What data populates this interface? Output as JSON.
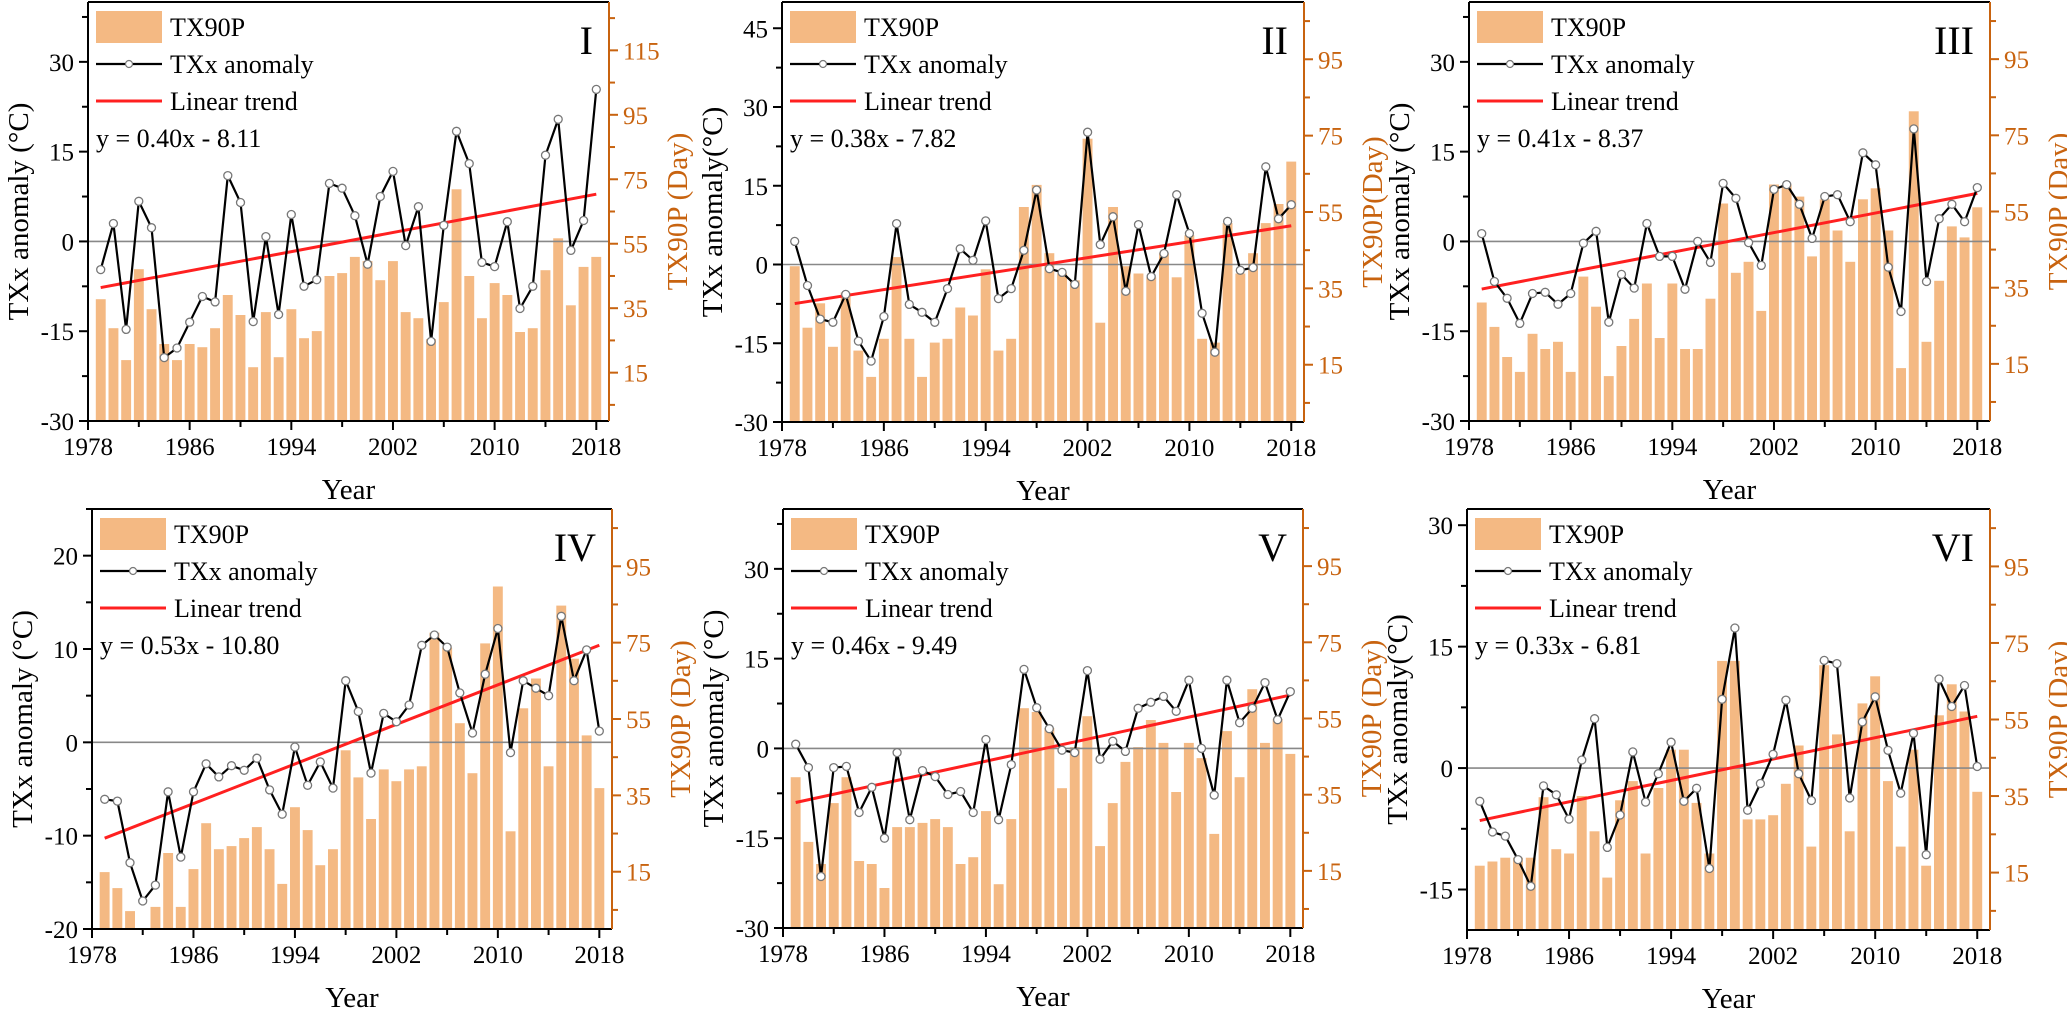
{
  "figure": {
    "x_label": "Year",
    "legend": {
      "bars": "TX90P",
      "line": "TXx anomaly",
      "trend": "Linear trend"
    },
    "colors": {
      "bars": "#F4B983",
      "right_axis": "#C8630F",
      "line": "#000000",
      "marker_fill": "#FFFFFF",
      "marker_stroke": "#777777",
      "trend": "#FF2020",
      "zero_line": "#888888"
    }
  },
  "chart_data": [
    {
      "type": "bar+line",
      "panel": "I",
      "equation": "y = 0.40x - 8.11",
      "trend": {
        "slope": 0.4,
        "intercept": -8.11
      },
      "ylabel_left": "TXx anomaly (°C)",
      "ylabel_right": "TX90P (Day)",
      "xlim": [
        1978,
        2019
      ],
      "x_ticks": [
        1978,
        1986,
        1994,
        2002,
        2010,
        2018
      ],
      "ylim_left": [
        -30,
        40
      ],
      "yticks_left": [
        -30,
        -15,
        0,
        15,
        30
      ],
      "ylim_right": [
        0,
        130
      ],
      "yticks_right": [
        15,
        35,
        55,
        75,
        95,
        115
      ],
      "years_start": 1979,
      "series": [
        {
          "name": "TXx anomaly",
          "axis": "left",
          "values": [
            -4.7,
            3.0,
            -14.7,
            6.7,
            2.3,
            -19.4,
            -17.8,
            -13.5,
            -9.2,
            -10.1,
            11.0,
            6.5,
            -13.4,
            0.8,
            -12.2,
            4.5,
            -7.5,
            -6.4,
            9.7,
            8.9,
            4.3,
            -3.8,
            7.5,
            11.7,
            -0.7,
            5.8,
            -16.7,
            2.7,
            18.4,
            13.0,
            -3.5,
            -4.2,
            3.3,
            -11.2,
            -7.5,
            14.4,
            20.4,
            -1.5,
            3.5,
            25.4
          ]
        },
        {
          "name": "TX90P",
          "axis": "right",
          "values": [
            37.8,
            28.8,
            18.9,
            47.1,
            34.7,
            23.9,
            18.9,
            23.9,
            22.9,
            28.8,
            39.1,
            32.9,
            16.7,
            33.8,
            19.8,
            34.7,
            25.7,
            27.9,
            45.0,
            45.9,
            50.9,
            49.6,
            43.7,
            49.6,
            33.8,
            31.9,
            25.4,
            36.9,
            71.9,
            45.0,
            31.9,
            42.8,
            39.1,
            27.6,
            28.8,
            46.8,
            56.7,
            35.9,
            47.8,
            50.9
          ]
        }
      ]
    },
    {
      "type": "bar+line",
      "panel": "II",
      "equation": "y = 0.38x - 7.82",
      "trend": {
        "slope": 0.38,
        "intercept": -7.82
      },
      "ylabel_left": "TXx anomaly(°C)",
      "ylabel_right": "TX90P(Day)",
      "xlim": [
        1978,
        2019
      ],
      "x_ticks": [
        1978,
        1986,
        1994,
        2002,
        2010,
        2018
      ],
      "ylim_left": [
        -30,
        50
      ],
      "yticks_left": [
        -30,
        -15,
        0,
        15,
        30,
        45
      ],
      "ylim_right": [
        0,
        110
      ],
      "yticks_right": [
        15,
        35,
        55,
        75,
        95
      ],
      "years_start": 1979,
      "series": [
        {
          "name": "TXx anomaly",
          "axis": "left",
          "values": [
            4.4,
            -4.0,
            -10.4,
            -11.0,
            -5.7,
            -14.6,
            -18.4,
            -9.9,
            7.8,
            -7.6,
            -9.1,
            -11.0,
            -4.6,
            3.0,
            0.8,
            8.3,
            -6.5,
            -4.6,
            2.7,
            14.2,
            -0.8,
            -1.5,
            -3.8,
            25.2,
            3.8,
            9.1,
            -5.1,
            7.6,
            -2.3,
            2.1,
            13.3,
            5.9,
            -9.3,
            -16.7,
            8.2,
            -1.1,
            -0.6,
            18.6,
            8.7,
            11.4
          ]
        },
        {
          "name": "TX90P",
          "axis": "right",
          "values": [
            40.8,
            24.7,
            31.1,
            19.7,
            33.9,
            18.7,
            11.8,
            21.8,
            43.2,
            21.8,
            11.8,
            20.8,
            21.8,
            30.0,
            27.9,
            40.0,
            18.7,
            21.8,
            56.3,
            62.1,
            44.2,
            38.9,
            37.1,
            74.2,
            26.0,
            56.3,
            40.8,
            38.9,
            37.9,
            44.2,
            37.9,
            48.9,
            21.8,
            20.8,
            52.1,
            38.9,
            44.2,
            52.1,
            57.1,
            68.2
          ]
        }
      ]
    },
    {
      "type": "bar+line",
      "panel": "III",
      "equation": "y = 0.41x - 8.37",
      "trend": {
        "slope": 0.41,
        "intercept": -8.37
      },
      "ylabel_left": "TXx anomaly (°C)",
      "ylabel_right": "TX90P (Day)",
      "xlim": [
        1978,
        2019
      ],
      "x_ticks": [
        1978,
        1986,
        1994,
        2002,
        2010,
        2018
      ],
      "ylim_left": [
        -30,
        40
      ],
      "yticks_left": [
        -30,
        -15,
        0,
        15,
        30
      ],
      "ylim_right": [
        0,
        110
      ],
      "yticks_right": [
        15,
        35,
        55,
        75,
        95
      ],
      "years_start": 1979,
      "series": [
        {
          "name": "TXx anomaly",
          "axis": "left",
          "values": [
            1.3,
            -6.7,
            -9.5,
            -13.7,
            -8.7,
            -8.5,
            -10.5,
            -8.7,
            -0.3,
            1.7,
            -13.5,
            -5.5,
            -7.8,
            3.0,
            -2.5,
            -2.5,
            -8.0,
            0.0,
            -3.5,
            9.7,
            7.2,
            -0.2,
            -4.0,
            8.7,
            9.5,
            6.2,
            0.5,
            7.5,
            7.8,
            3.3,
            14.8,
            12.8,
            -4.3,
            -11.7,
            18.8,
            -6.7,
            3.8,
            6.2,
            3.3,
            9.0
          ]
        },
        {
          "name": "TX90P",
          "axis": "right",
          "values": [
            31.1,
            24.7,
            16.8,
            12.9,
            22.9,
            18.9,
            20.8,
            12.9,
            37.9,
            30.0,
            11.8,
            19.7,
            26.8,
            36.1,
            21.8,
            36.1,
            18.9,
            18.9,
            32.1,
            57.1,
            38.9,
            41.8,
            28.9,
            62.1,
            62.1,
            58.9,
            43.2,
            58.2,
            50.0,
            41.8,
            58.2,
            61.1,
            50.0,
            13.9,
            81.3,
            20.8,
            36.8,
            51.1,
            48.2,
            56.1
          ]
        }
      ]
    },
    {
      "type": "bar+line",
      "panel": "IV",
      "equation": "y = 0.53x - 10.80",
      "trend": {
        "slope": 0.53,
        "intercept": -10.8
      },
      "ylabel_left": "TXx anomaly (°C)",
      "ylabel_right": "TX90P (Day)",
      "xlim": [
        1978,
        2019
      ],
      "x_ticks": [
        1978,
        1986,
        1994,
        2002,
        2010,
        2018
      ],
      "ylim_left": [
        -20,
        25
      ],
      "yticks_left": [
        -20,
        -10,
        0,
        10,
        20
      ],
      "ylim_right": [
        0,
        110
      ],
      "yticks_right": [
        15,
        35,
        55,
        75,
        95
      ],
      "years_start": 1979,
      "series": [
        {
          "name": "TXx anomaly",
          "axis": "left",
          "values": [
            -6.1,
            -6.3,
            -12.9,
            -17.0,
            -15.3,
            -5.3,
            -12.3,
            -5.3,
            -2.3,
            -3.7,
            -2.5,
            -3.0,
            -1.7,
            -5.1,
            -7.7,
            -0.5,
            -4.6,
            -2.1,
            -4.9,
            6.6,
            3.3,
            -3.3,
            3.1,
            2.2,
            4.0,
            10.4,
            11.5,
            10.2,
            5.3,
            1.0,
            7.3,
            12.2,
            -1.1,
            6.6,
            5.8,
            5.0,
            13.5,
            6.6,
            9.9,
            1.2
          ]
        },
        {
          "name": "TX90P",
          "axis": "right",
          "values": [
            14.9,
            10.7,
            4.7,
            0.0,
            5.8,
            19.9,
            5.8,
            15.7,
            27.7,
            20.9,
            21.7,
            23.8,
            26.7,
            20.9,
            11.8,
            31.9,
            25.9,
            16.7,
            20.9,
            46.8,
            39.7,
            28.8,
            41.8,
            38.7,
            41.8,
            42.6,
            77.6,
            73.7,
            53.9,
            40.8,
            74.8,
            89.7,
            25.6,
            57.8,
            65.6,
            42.6,
            84.7,
            70.8,
            50.7,
            36.9
          ]
        }
      ]
    },
    {
      "type": "bar+line",
      "panel": "V",
      "equation": "y = 0.46x - 9.49",
      "trend": {
        "slope": 0.46,
        "intercept": -9.49
      },
      "ylabel_left": "TXx anomaly (°C)",
      "ylabel_right": "TX90P (Day)",
      "xlim": [
        1978,
        2019
      ],
      "x_ticks": [
        1978,
        1986,
        1994,
        2002,
        2010,
        2018
      ],
      "ylim_left": [
        -30,
        40
      ],
      "yticks_left": [
        -30,
        -15,
        0,
        15,
        30
      ],
      "ylim_right": [
        0,
        110
      ],
      "yticks_right": [
        15,
        35,
        55,
        75,
        95
      ],
      "years_start": 1979,
      "series": [
        {
          "name": "TXx anomaly",
          "axis": "left",
          "values": [
            0.7,
            -3.2,
            -21.4,
            -3.2,
            -3.0,
            -10.7,
            -6.5,
            -15.0,
            -0.7,
            -11.9,
            -3.7,
            -4.7,
            -7.7,
            -7.2,
            -10.7,
            1.5,
            -11.9,
            -2.7,
            13.2,
            6.8,
            3.3,
            -0.3,
            -0.7,
            13.0,
            -1.8,
            1.2,
            -0.5,
            6.7,
            7.7,
            8.7,
            6.2,
            11.4,
            0.0,
            -7.8,
            11.4,
            4.3,
            6.7,
            11.0,
            4.8,
            9.5
          ]
        },
        {
          "name": "TX90P",
          "axis": "right",
          "values": [
            39.6,
            22.6,
            16.8,
            32.8,
            39.6,
            17.6,
            16.8,
            10.5,
            26.5,
            26.5,
            27.6,
            28.6,
            26.5,
            16.8,
            18.6,
            30.7,
            11.5,
            28.6,
            57.7,
            56.7,
            52.5,
            36.7,
            47.5,
            55.6,
            21.5,
            32.8,
            43.6,
            47.5,
            54.6,
            48.6,
            35.7,
            48.6,
            44.6,
            24.7,
            51.7,
            39.6,
            62.7,
            48.6,
            54.9,
            45.7
          ]
        }
      ]
    },
    {
      "type": "bar+line",
      "panel": "VI",
      "equation": "y = 0.33x - 6.81",
      "trend": {
        "slope": 0.33,
        "intercept": -6.81
      },
      "ylabel_left": "TXx anomaly(°C)",
      "ylabel_right": "TX90P (Day)",
      "xlim": [
        1978,
        2019
      ],
      "x_ticks": [
        1978,
        1986,
        1994,
        2002,
        2010,
        2018
      ],
      "ylim_left": [
        -20,
        32
      ],
      "yticks_left": [
        -15,
        0,
        15,
        30
      ],
      "ylim_right": [
        0,
        110
      ],
      "yticks_right": [
        15,
        35,
        55,
        75,
        95
      ],
      "years_start": 1979,
      "series": [
        {
          "name": "TXx anomaly",
          "axis": "left",
          "values": [
            -4.1,
            -7.9,
            -8.4,
            -11.3,
            -14.6,
            -2.2,
            -3.3,
            -6.3,
            1.0,
            6.1,
            -9.8,
            -5.8,
            2.0,
            -4.2,
            -0.7,
            3.2,
            -4.1,
            -2.5,
            -12.4,
            8.5,
            17.3,
            -5.2,
            -1.9,
            1.7,
            8.4,
            -0.7,
            -4.0,
            13.3,
            12.9,
            -3.7,
            5.7,
            8.8,
            2.2,
            -3.1,
            4.3,
            -10.7,
            11.0,
            7.6,
            10.2,
            0.2
          ]
        },
        {
          "name": "TX90P",
          "axis": "right",
          "values": [
            16.8,
            17.9,
            18.9,
            18.9,
            18.9,
            34.7,
            21.1,
            20.0,
            35.0,
            25.8,
            13.7,
            33.9,
            38.9,
            20.0,
            37.1,
            47.1,
            47.1,
            33.2,
            20.0,
            70.3,
            70.3,
            28.9,
            28.9,
            30.0,
            38.2,
            48.2,
            21.8,
            69.2,
            51.1,
            25.8,
            59.2,
            66.3,
            38.9,
            21.8,
            47.1,
            16.8,
            56.1,
            64.2,
            57.1,
            36.1
          ]
        }
      ]
    }
  ]
}
